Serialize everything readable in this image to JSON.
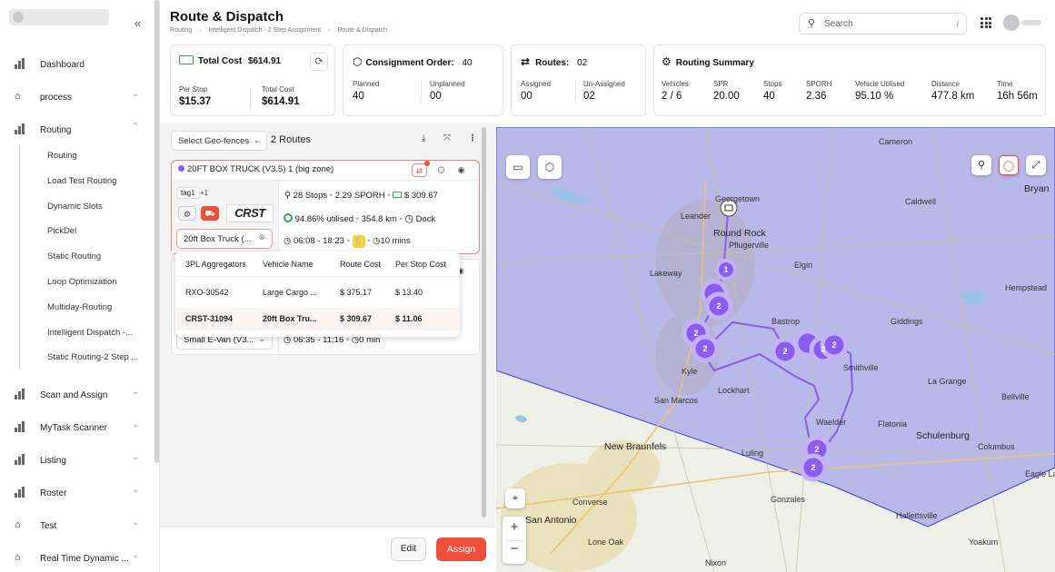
{
  "sidebar": {
    "collapse_icon": "double-chevron-left-icon",
    "items": [
      {
        "label": "Dashboard",
        "icon": "bar-chart-icon"
      },
      {
        "label": "process",
        "icon": "home-icon"
      },
      {
        "label": "Routing",
        "icon": "bar-chart-icon"
      },
      {
        "label": "Scan and Assign",
        "icon": "bar-chart-icon"
      },
      {
        "label": "MyTask Scanner",
        "icon": "bar-chart-icon"
      },
      {
        "label": "Listing",
        "icon": "bar-chart-icon"
      },
      {
        "label": "Roster",
        "icon": "bar-chart-icon"
      },
      {
        "label": "Test",
        "icon": "home-icon"
      },
      {
        "label": "Real Time Dynamic ...",
        "icon": "home-icon"
      }
    ],
    "routing_sub": [
      "Routing",
      "Load Test Routing",
      "Dynamic Slots",
      "PickDel",
      "Static Routing",
      "Loop Optimization",
      "Multiday-Routing",
      "Intelligent Dispatch -...",
      "Static Routing-2 Step ..."
    ]
  },
  "header": {
    "title": "Route & Dispatch",
    "breadcrumb": [
      "Routing",
      "Intelligent Dispatch - 2 Step Assignment",
      "Route & Dispatch"
    ],
    "search_placeholder": "Search",
    "search_shortcut": "/"
  },
  "cards": {
    "total_cost": {
      "title": "Total Cost",
      "value": "$614.91",
      "per_stop_label": "Per Stop",
      "per_stop": "$15.37",
      "total_label": "Total Cost",
      "total": "$614.91"
    },
    "consignment": {
      "title": "Consignment Order:",
      "value": "40",
      "planned_label": "Planned",
      "planned": "40",
      "unplanned_label": "Unplanned",
      "unplanned": "00"
    },
    "routes": {
      "title": "Routes:",
      "value": "02",
      "assigned_label": "Assigned",
      "assigned": "00",
      "unassigned_label": "Un-Assigned",
      "unassigned": "02"
    },
    "summary": {
      "title": "Routing Summary",
      "items": [
        {
          "label": "Vehicles",
          "value": "2 / 6"
        },
        {
          "label": "SPR",
          "value": "20.00"
        },
        {
          "label": "Stops",
          "value": "40"
        },
        {
          "label": "SPORH",
          "value": "2.36"
        },
        {
          "label": "Vehicle Utilised",
          "value": "95.10 %"
        },
        {
          "label": "Distance",
          "value": "477.8 km"
        },
        {
          "label": "Time",
          "value": "16h 56m"
        }
      ]
    }
  },
  "panel": {
    "geofence_placeholder": "Select Geo-fences",
    "routes_count": "2 Routes",
    "route1": {
      "title": "20FT BOX TRUCK (V3.5) 1 (big zone)",
      "tag": "tag1",
      "tag_more": "+1",
      "logo_text": "CRST",
      "vehicle": "20ft Box Truck (...",
      "stops": "28 Stops",
      "sporh": "2.29 SPORH",
      "cost": "$ 309.67",
      "utilised": "94.86% utilised",
      "distance": "354.8 km",
      "dock": "Dock",
      "time_window": "06:08 - 18:23",
      "break": "10 mins",
      "dot_color": "#8b5cf6"
    },
    "route2": {
      "vehicle": "Small E-Van (V3...",
      "time_window": "06:35 - 11:16",
      "break": "0 min"
    },
    "dropdown": {
      "headers": [
        "3PL Aggregators",
        "Vehicle Name",
        "Route Cost",
        "Per Stop Cost"
      ],
      "rows": [
        [
          "RXO-30542",
          "Large Cargo ...",
          "$ 375.17",
          "$ 13.40"
        ],
        [
          "CRST-31094",
          "20ft Box Tru...",
          "$ 309.67",
          "$ 11.06"
        ]
      ]
    },
    "edit_label": "Edit",
    "assign_label": "Assign",
    "accent": "#ef4f3a"
  },
  "map": {
    "cities": [
      "Georgetown",
      "Round Rock",
      "Leander",
      "Pflugerville",
      "Lakeway",
      "Cameron",
      "Bryan",
      "Giddings",
      "Kyle",
      "Smithville",
      "San Marcos",
      "Lockhart",
      "Luling",
      "New Braunfels",
      "Schulenburg",
      "Columbus",
      "Converse",
      "Gonzales",
      "Hallettsville",
      "Lone Oak",
      "Nixon",
      "La Grange",
      "Bastrop",
      "Elgin",
      "Caldwell",
      "Hempstead",
      "Flatonia",
      "Waelder",
      "Bellville",
      "Eagle Lake",
      "Yoakum",
      "San Antonio"
    ],
    "clusters": [
      "1",
      "2",
      "2",
      "2",
      "2",
      "2",
      "2",
      "2",
      "2"
    ],
    "zoom_in": "+",
    "zoom_out": "−",
    "polygon_color": "#8c8ce8",
    "route_color": "#8a5cf0"
  }
}
